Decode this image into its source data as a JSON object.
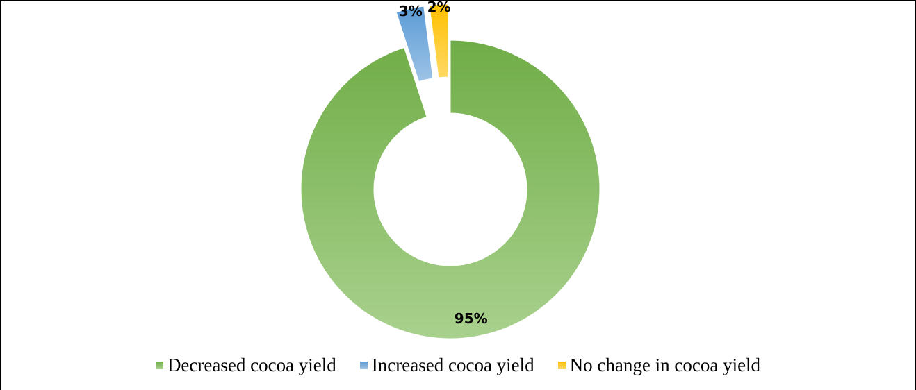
{
  "chart_data": {
    "type": "pie",
    "variant": "doughnut",
    "categories": [
      "Decreased cocoa yield",
      "Increased cocoa yield",
      "No change in cocoa yield"
    ],
    "values": [
      95,
      3,
      2
    ],
    "data_labels": [
      "95%",
      "3%",
      "2%"
    ],
    "colors": [
      "#70ad47",
      "#5b9bd5",
      "#ffc000"
    ],
    "colors_light": [
      "#a9d18e",
      "#9dc3e6",
      "#ffd966"
    ],
    "exploded": [
      false,
      true,
      true
    ],
    "legend_position": "bottom",
    "title": ""
  }
}
